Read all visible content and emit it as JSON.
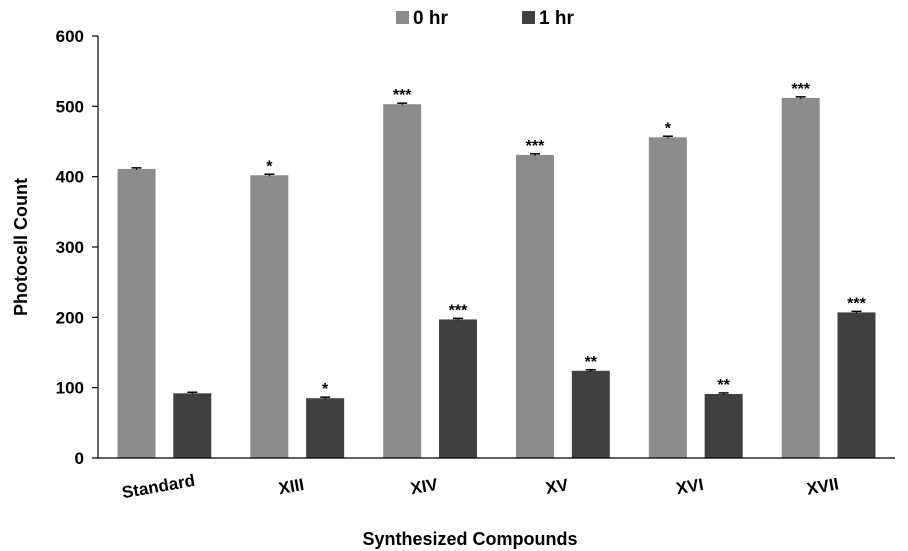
{
  "chart_data": {
    "type": "bar",
    "categories": [
      "Standard",
      "XIII",
      "XIV",
      "XV",
      "XVI",
      "XVII"
    ],
    "series": [
      {
        "name": "0 hr",
        "color": "#8c8c8c",
        "values": [
          411,
          402,
          503,
          431,
          456,
          512
        ],
        "errors": [
          1.5,
          1.5,
          1.5,
          1.5,
          1.5,
          1.5
        ],
        "significance": [
          "",
          "*",
          "***",
          "***",
          "*",
          "***"
        ]
      },
      {
        "name": "1 hr",
        "color": "#404040",
        "values": [
          92,
          85,
          197,
          124,
          91,
          207
        ],
        "errors": [
          1.5,
          1.5,
          1.5,
          1.5,
          1.5,
          1.5
        ],
        "significance": [
          "",
          "*",
          "***",
          "**",
          "**",
          "***"
        ]
      }
    ],
    "yticks": [
      "0",
      "100",
      "200",
      "300",
      "400",
      "500",
      "600"
    ],
    "ylim": [
      0,
      600
    ],
    "xlabel": "Synthesized Compounds",
    "ylabel": "Photocell Count",
    "legend_position": "top-center",
    "grid": false
  }
}
